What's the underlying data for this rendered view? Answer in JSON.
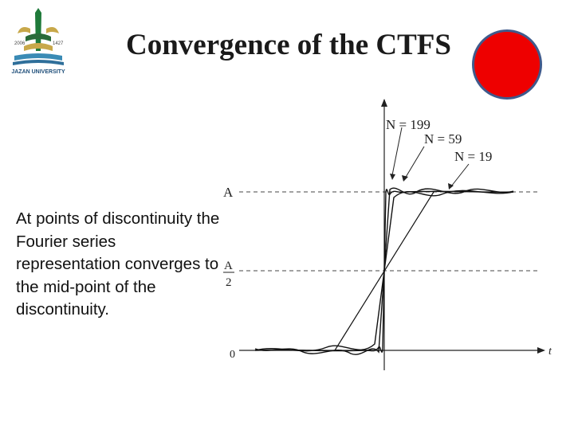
{
  "slide": {
    "title": "Convergence of the CTFS",
    "body_text": "At points of discontinuity the Fourier series representation converges to the mid-point of the discontinuity.",
    "record_button_color": "#ee0000",
    "logo": {
      "caption": "JAZAN UNIVERSITY",
      "left_year": "2006",
      "right_year": "1427"
    }
  },
  "diagram": {
    "level_high_label": "A",
    "level_mid_numerator": "A",
    "level_mid_denominator": "2",
    "level_zero_label": "0",
    "x_axis_label": "t",
    "curve_labels": [
      "N = 199",
      "N = 59",
      "N = 19"
    ]
  }
}
